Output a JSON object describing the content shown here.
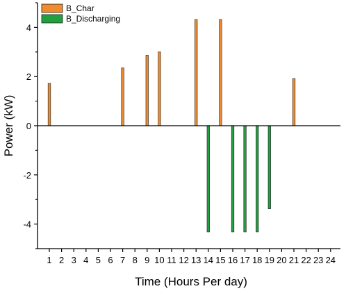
{
  "chart_data": {
    "type": "bar",
    "title": "",
    "xlabel": "Time (Hours Per day)",
    "ylabel": "Power (kW)",
    "categories": [
      "1",
      "2",
      "3",
      "4",
      "5",
      "6",
      "7",
      "8",
      "9",
      "10",
      "11",
      "12",
      "13",
      "14",
      "15",
      "16",
      "17",
      "18",
      "19",
      "20",
      "21",
      "22",
      "23",
      "24"
    ],
    "ylim": [
      -5,
      5
    ],
    "yticks": [
      "-4",
      "-2",
      "0",
      "2",
      "4"
    ],
    "legend_position": "top-left",
    "grid": false,
    "series": [
      {
        "name": "B_Char",
        "color": "#f08c2e",
        "values": [
          1.72,
          0,
          0,
          0,
          0,
          0,
          2.35,
          0,
          2.87,
          3.0,
          0,
          0,
          4.32,
          0,
          4.32,
          0,
          0,
          0,
          0,
          0,
          1.92,
          0,
          0,
          0
        ]
      },
      {
        "name": "B_Discharging",
        "color": "#21a040",
        "values": [
          0,
          0,
          0,
          0,
          0,
          0,
          0,
          0,
          0,
          0,
          0,
          0,
          0,
          -4.32,
          0,
          -4.32,
          -4.32,
          -4.32,
          -3.38,
          0,
          0,
          0,
          0,
          0
        ]
      }
    ]
  }
}
